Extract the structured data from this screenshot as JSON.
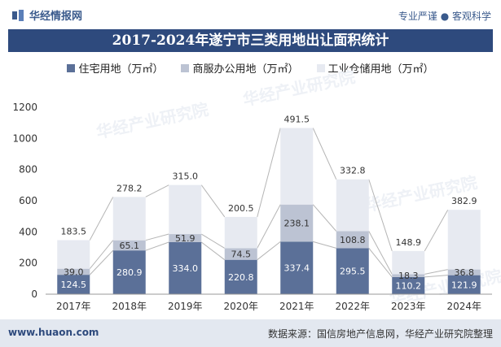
{
  "header": {
    "brand": "华经情报网",
    "tagline": "专业严谨 ● 客观科学"
  },
  "chart_title": "2017-2024年遂宁市三类用地出让面积统计",
  "legend": [
    {
      "label": "住宅用地（万㎡）",
      "color": "#5b7098"
    },
    {
      "label": "商服办公用地（万㎡）",
      "color": "#bcc3d3"
    },
    {
      "label": "工业仓储用地（万㎡）",
      "color": "#e7eaf1"
    }
  ],
  "footer": {
    "website": "www.huaon.com",
    "source": "数据来源：国信房地产信息网，华经产业研究院整理"
  },
  "watermark": "华经产业研究院",
  "chart_data": {
    "type": "bar",
    "stacked": true,
    "categories": [
      "2017年",
      "2018年",
      "2019年",
      "2020年",
      "2021年",
      "2022年",
      "2023年",
      "2024年"
    ],
    "series": [
      {
        "name": "住宅用地（万㎡）",
        "values": [
          124.5,
          280.9,
          334.0,
          220.8,
          337.4,
          295.5,
          110.2,
          121.9
        ],
        "color": "#5b7098"
      },
      {
        "name": "商服办公用地（万㎡）",
        "values": [
          39.0,
          65.1,
          51.9,
          74.5,
          238.1,
          108.8,
          18.3,
          36.8
        ],
        "color": "#bcc3d3"
      },
      {
        "name": "工业仓储用地（万㎡）",
        "values": [
          183.5,
          278.2,
          315.0,
          200.5,
          491.5,
          332.8,
          148.9,
          382.9
        ],
        "color": "#e7eaf1"
      }
    ],
    "yticks": [
      "0",
      "200",
      "400",
      "600",
      "800",
      "1000",
      "1200"
    ],
    "ylim": [
      0,
      1200
    ],
    "grid": false,
    "legend_position": "top"
  }
}
